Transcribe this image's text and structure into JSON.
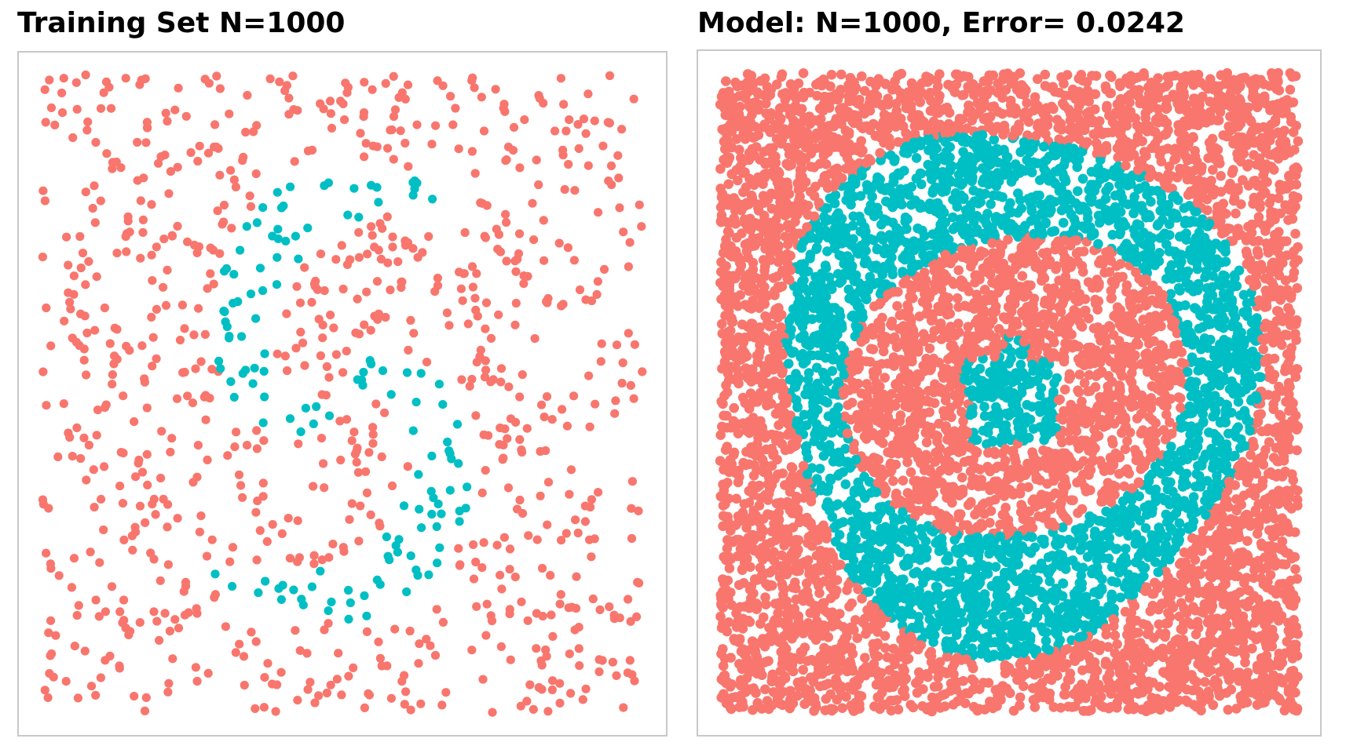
{
  "chart_data": [
    {
      "type": "scatter",
      "title": "Training Set N=1000",
      "xlabel": "",
      "ylabel": "",
      "axes_visible": false,
      "grid": false,
      "xlim": [
        -1,
        1
      ],
      "ylim": [
        -1,
        1
      ],
      "n_points": 1000,
      "seed": 7,
      "pattern": "two-class spiral arms on uniform square",
      "series": [
        {
          "color": "#f8766d"
        },
        {
          "color": "#00bfc4"
        }
      ]
    },
    {
      "type": "scatter",
      "title": "Model: N=1000, Error= 0.0242",
      "xlabel": "",
      "ylabel": "",
      "axes_visible": false,
      "grid": false,
      "xlim": [
        -1,
        1
      ],
      "ylim": [
        -1,
        1
      ],
      "n_points": 8000,
      "seed": 11,
      "error": 0.0242,
      "pattern": "predicted regions: outer background, ring, inner region, central blob",
      "series": [
        {
          "color": "#f8766d"
        },
        {
          "color": "#00bfc4"
        }
      ]
    }
  ]
}
